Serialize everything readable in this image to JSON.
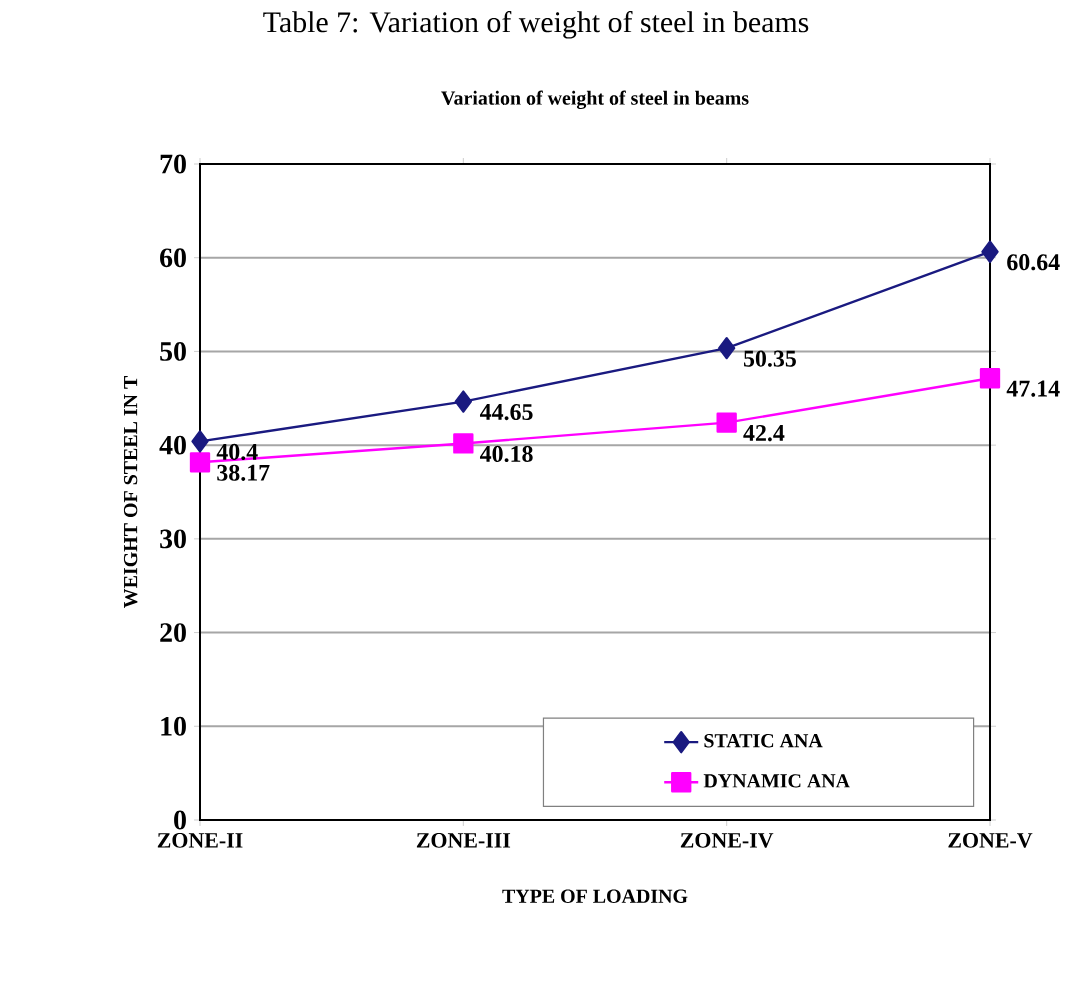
{
  "chart_data": {
    "type": "line",
    "title": "Variation of weight of steel in beams",
    "xlabel": "TYPE OF LOADING",
    "ylabel": "WEIGHT OF STEEL IN T",
    "annotations": [
      "Table 7: Variation of weight of steel in beams"
    ],
    "categories": [
      "ZONE-II",
      "ZONE-III",
      "ZONE-IV",
      "ZONE-V"
    ],
    "series": [
      {
        "name": "STATIC ANA",
        "color": "#1a1a80",
        "marker": "diamond",
        "values": [
          40.4,
          44.65,
          50.35,
          60.64
        ]
      },
      {
        "name": "DYNAMIC ANA",
        "color": "#ff00ff",
        "marker": "square",
        "values": [
          38.17,
          40.18,
          42.4,
          47.14
        ]
      }
    ],
    "ylim": [
      0,
      70
    ],
    "yticks": [
      0,
      10,
      20,
      30,
      40,
      50,
      60,
      70
    ],
    "grid": "y",
    "legend": "bottom right",
    "data_labels": true
  }
}
